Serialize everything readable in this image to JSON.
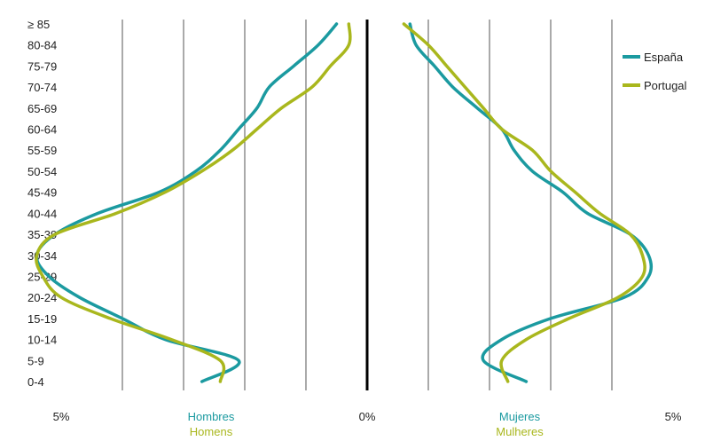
{
  "chart_data": {
    "type": "line",
    "layout": "population-pyramid",
    "age_groups": [
      "0-4",
      "5-9",
      "10-14",
      "15-19",
      "20-24",
      "25-29",
      "30-34",
      "35-39",
      "40-44",
      "45-49",
      "50-54",
      "55-59",
      "60-64",
      "65-69",
      "70-74",
      "75-79",
      "80-84",
      "≥ 85"
    ],
    "x_ticks": [
      "5%",
      "0%",
      "5%"
    ],
    "xlim_each_side": [
      0,
      5
    ],
    "left_label": {
      "line1": "Hombres",
      "line2": "Homens"
    },
    "right_label": {
      "line1": "Mujeres",
      "line2": "Mulheres"
    },
    "grid": true,
    "legend_position": "top-right",
    "series": [
      {
        "name": "España",
        "color": "#1b9aa0",
        "men": [
          2.7,
          2.1,
          3.3,
          4.0,
          4.7,
          5.2,
          5.4,
          5.1,
          4.4,
          3.4,
          2.8,
          2.4,
          2.1,
          1.8,
          1.6,
          1.2,
          0.8,
          0.5
        ],
        "women": [
          2.6,
          1.9,
          2.2,
          3.0,
          4.2,
          4.6,
          4.6,
          4.3,
          3.6,
          3.2,
          2.7,
          2.4,
          2.2,
          1.8,
          1.4,
          1.1,
          0.8,
          0.7
        ]
      },
      {
        "name": "Portugal",
        "color": "#a9b71d",
        "men": [
          2.4,
          2.4,
          3.2,
          4.2,
          5.0,
          5.3,
          5.4,
          5.1,
          4.1,
          3.3,
          2.7,
          2.2,
          1.8,
          1.4,
          0.9,
          0.6,
          0.3,
          0.3
        ],
        "women": [
          2.3,
          2.2,
          2.6,
          3.3,
          4.1,
          4.5,
          4.5,
          4.3,
          3.8,
          3.4,
          3.0,
          2.7,
          2.2,
          1.9,
          1.6,
          1.3,
          1.0,
          0.6
        ]
      }
    ]
  }
}
